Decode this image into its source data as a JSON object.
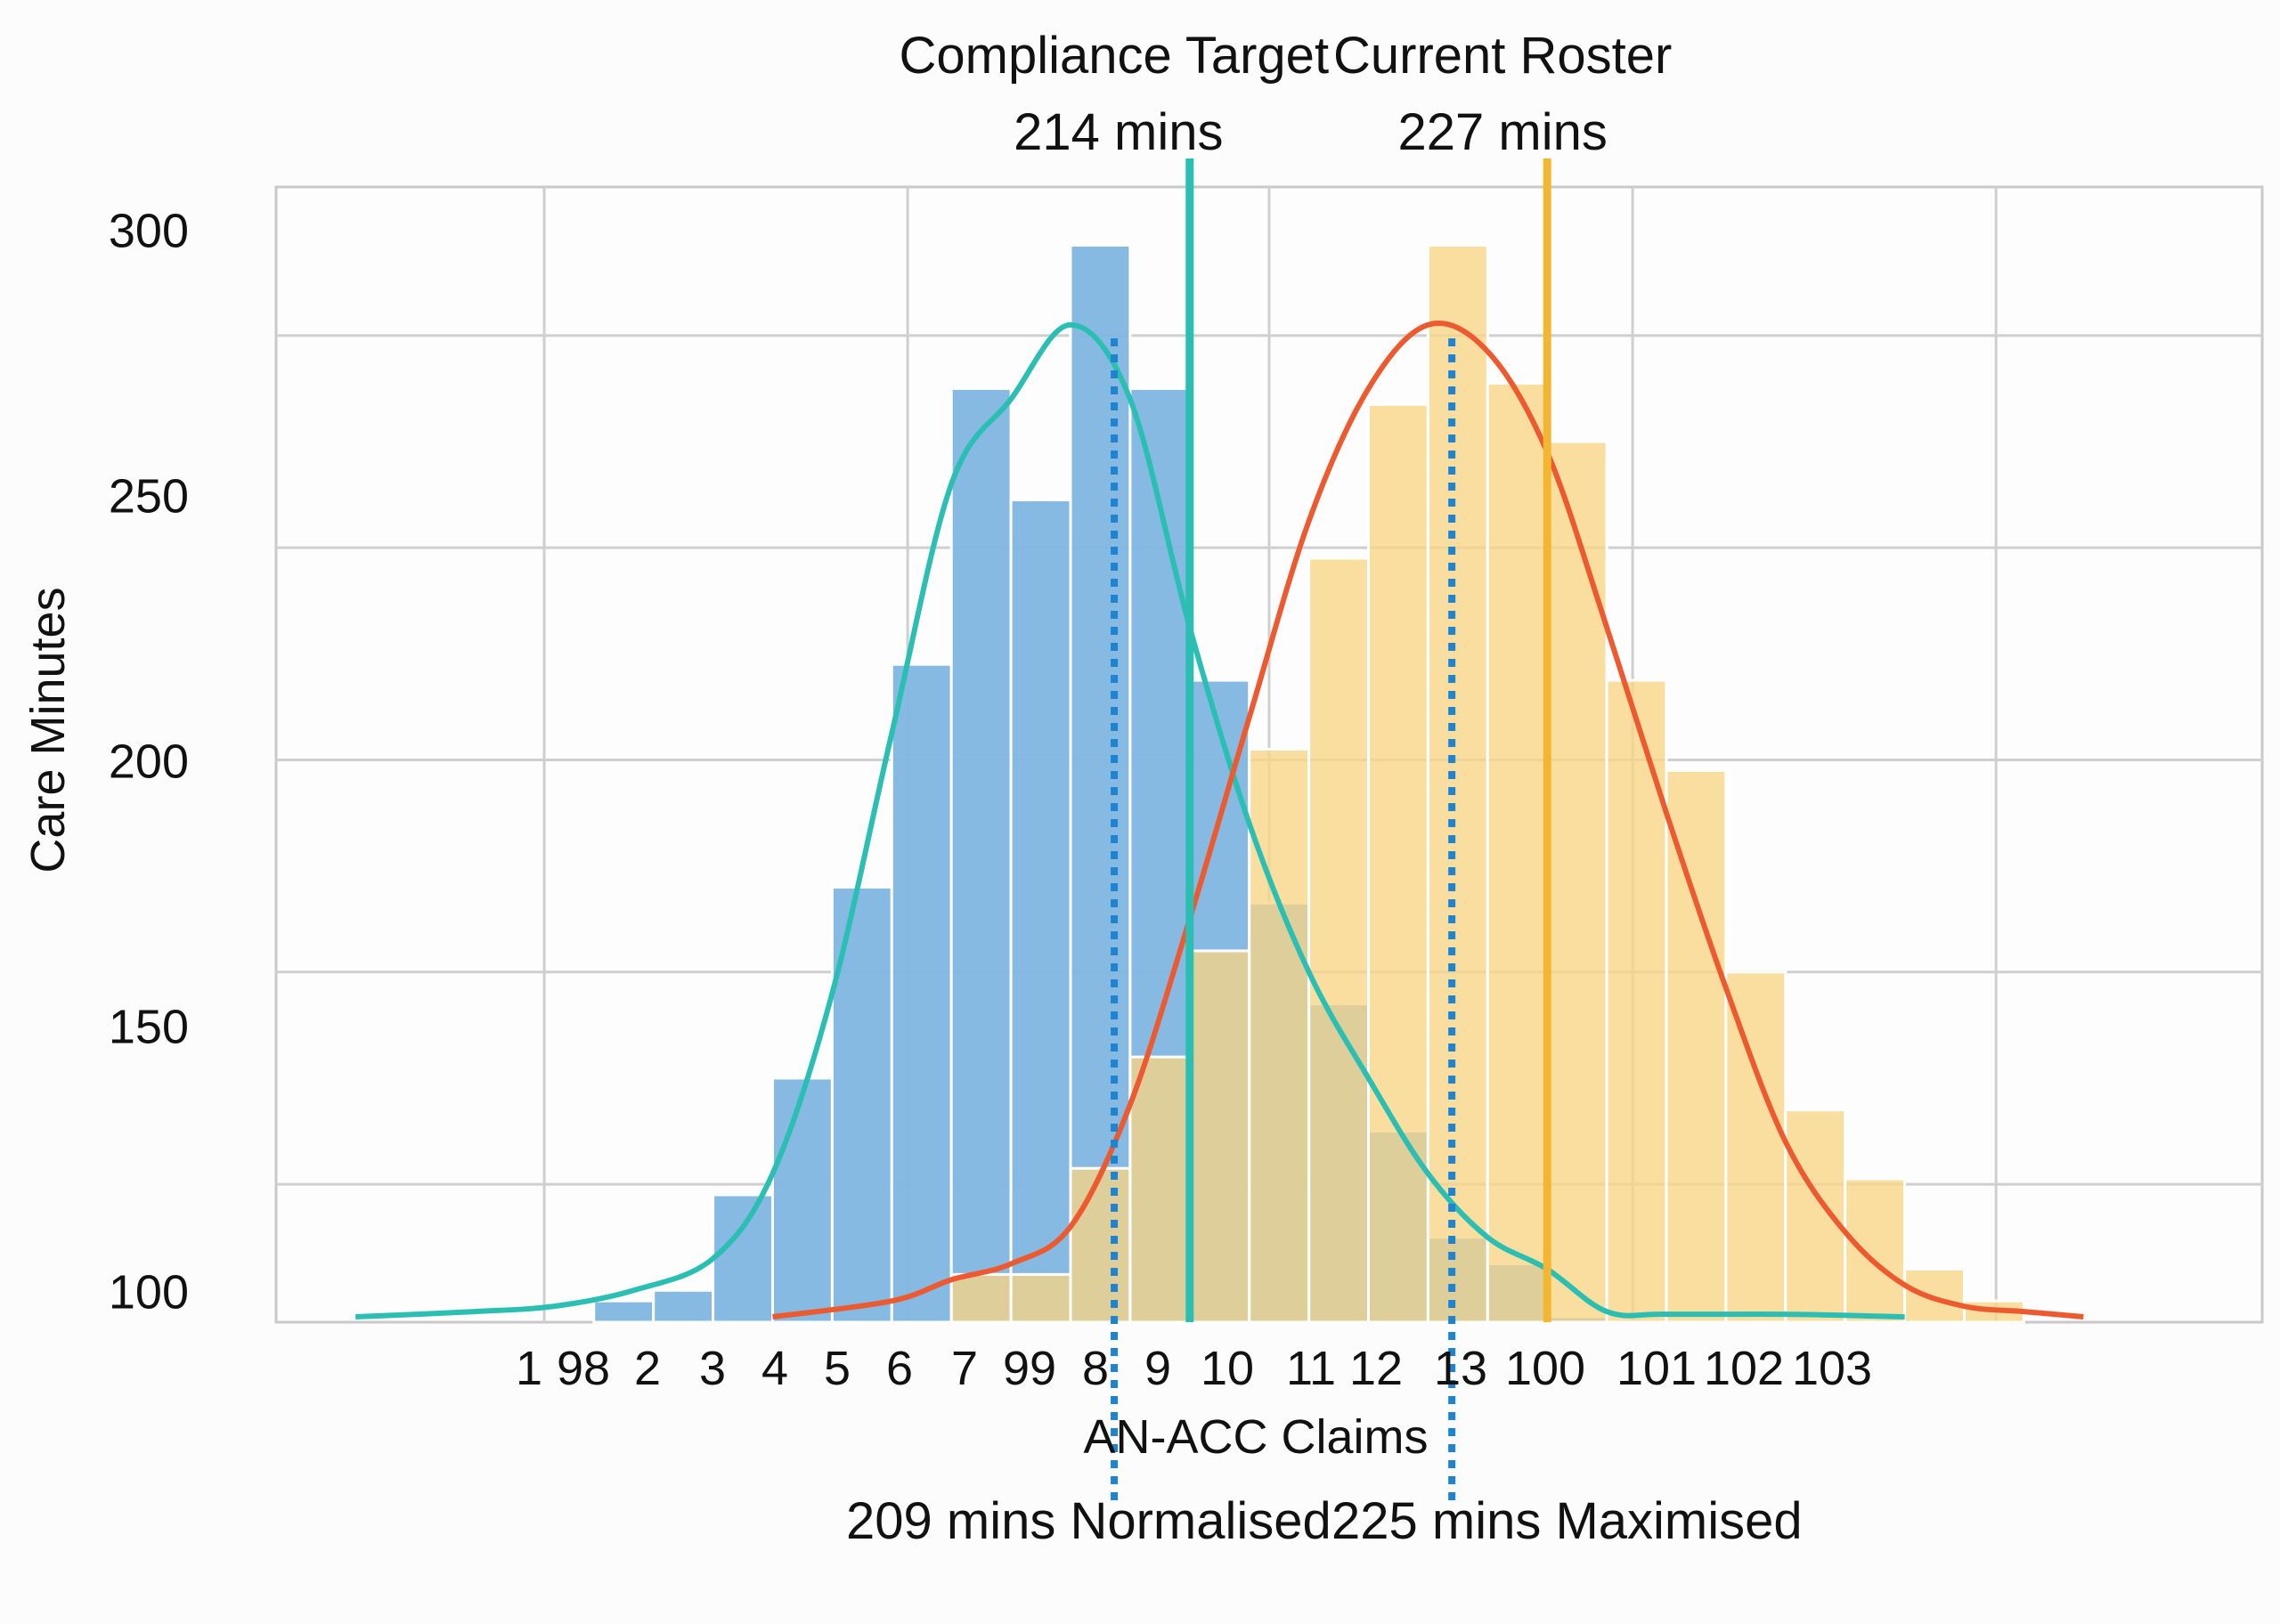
{
  "chart_data": {
    "type": "bar",
    "xlabel": "AN-ACC Claims",
    "ylabel": "Care Minutes",
    "yticks": [
      100,
      150,
      200,
      250,
      300
    ],
    "ylim": [
      94,
      308
    ],
    "grid": true,
    "xticks": [
      "1",
      "98",
      "2",
      "3",
      "4",
      "5",
      "6",
      "7",
      "99",
      "8",
      "9",
      "10",
      "11",
      "12",
      "13",
      "100",
      "101",
      "102",
      "103"
    ],
    "series": [
      {
        "color": "#7fb6e0",
        "bars": [
          {
            "from": 0.16,
            "to": 0.19,
            "value": 98
          },
          {
            "from": 0.19,
            "to": 0.22,
            "value": 100
          },
          {
            "from": 0.22,
            "to": 0.25,
            "value": 118
          },
          {
            "from": 0.25,
            "to": 0.28,
            "value": 140
          },
          {
            "from": 0.28,
            "to": 0.31,
            "value": 176
          },
          {
            "from": 0.31,
            "to": 0.34,
            "value": 218
          },
          {
            "from": 0.34,
            "to": 0.37,
            "value": 270
          },
          {
            "from": 0.37,
            "to": 0.4,
            "value": 249
          },
          {
            "from": 0.4,
            "to": 0.43,
            "value": 297
          },
          {
            "from": 0.43,
            "to": 0.46,
            "value": 270
          },
          {
            "from": 0.46,
            "to": 0.49,
            "value": 215
          },
          {
            "from": 0.49,
            "to": 0.52,
            "value": 173
          },
          {
            "from": 0.52,
            "to": 0.55,
            "value": 154
          },
          {
            "from": 0.55,
            "to": 0.58,
            "value": 130
          },
          {
            "from": 0.58,
            "to": 0.61,
            "value": 110
          },
          {
            "from": 0.61,
            "to": 0.64,
            "value": 105
          },
          {
            "from": 0.64,
            "to": 0.67,
            "value": 95
          }
        ]
      },
      {
        "color": "#f7d585",
        "bars": [
          {
            "from": 0.34,
            "to": 0.37,
            "value": 103
          },
          {
            "from": 0.37,
            "to": 0.4,
            "value": 103
          },
          {
            "from": 0.4,
            "to": 0.43,
            "value": 123
          },
          {
            "from": 0.43,
            "to": 0.46,
            "value": 144
          },
          {
            "from": 0.46,
            "to": 0.49,
            "value": 164
          },
          {
            "from": 0.49,
            "to": 0.52,
            "value": 202
          },
          {
            "from": 0.52,
            "to": 0.55,
            "value": 238
          },
          {
            "from": 0.55,
            "to": 0.58,
            "value": 267
          },
          {
            "from": 0.58,
            "to": 0.61,
            "value": 297
          },
          {
            "from": 0.61,
            "to": 0.64,
            "value": 271
          },
          {
            "from": 0.64,
            "to": 0.67,
            "value": 260
          },
          {
            "from": 0.67,
            "to": 0.7,
            "value": 215
          },
          {
            "from": 0.7,
            "to": 0.73,
            "value": 198
          },
          {
            "from": 0.73,
            "to": 0.76,
            "value": 160
          },
          {
            "from": 0.76,
            "to": 0.79,
            "value": 134
          },
          {
            "from": 0.79,
            "to": 0.82,
            "value": 121
          },
          {
            "from": 0.82,
            "to": 0.85,
            "value": 104
          },
          {
            "from": 0.85,
            "to": 0.88,
            "value": 98
          }
        ]
      }
    ],
    "curves": [
      {
        "color": "#2bbfb3",
        "points": [
          [
            0.04,
            95
          ],
          [
            0.1,
            96
          ],
          [
            0.14,
            97
          ],
          [
            0.18,
            100
          ],
          [
            0.22,
            106
          ],
          [
            0.25,
            122
          ],
          [
            0.28,
            156
          ],
          [
            0.31,
            205
          ],
          [
            0.34,
            252
          ],
          [
            0.37,
            268
          ],
          [
            0.4,
            282
          ],
          [
            0.43,
            268
          ],
          [
            0.46,
            225
          ],
          [
            0.49,
            188
          ],
          [
            0.52,
            160
          ],
          [
            0.55,
            140
          ],
          [
            0.58,
            122
          ],
          [
            0.61,
            110
          ],
          [
            0.64,
            104
          ],
          [
            0.67,
            96
          ],
          [
            0.7,
            95.5
          ],
          [
            0.76,
            95.5
          ],
          [
            0.82,
            95
          ]
        ]
      },
      {
        "color": "#ee5a30",
        "points": [
          [
            0.25,
            95
          ],
          [
            0.31,
            98
          ],
          [
            0.34,
            102
          ],
          [
            0.37,
            105
          ],
          [
            0.4,
            112
          ],
          [
            0.43,
            135
          ],
          [
            0.46,
            170
          ],
          [
            0.49,
            208
          ],
          [
            0.52,
            245
          ],
          [
            0.55,
            270
          ],
          [
            0.58,
            282
          ],
          [
            0.61,
            277
          ],
          [
            0.64,
            258
          ],
          [
            0.67,
            225
          ],
          [
            0.7,
            190
          ],
          [
            0.73,
            157
          ],
          [
            0.76,
            128
          ],
          [
            0.79,
            111
          ],
          [
            0.82,
            101
          ],
          [
            0.85,
            97
          ],
          [
            0.88,
            96
          ],
          [
            0.91,
            95
          ]
        ]
      }
    ],
    "reference_lines": [
      {
        "name": "Compliance Target",
        "value_label": "214 mins",
        "x": 0.46,
        "style": "solid",
        "color": "#2bbfb3",
        "label_position": "top"
      },
      {
        "name": "Current Roster",
        "value_label": "227 mins",
        "x": 0.64,
        "style": "solid",
        "color": "#f2b632",
        "label_position": "top"
      },
      {
        "name": "209 mins Normalised",
        "x": 0.422,
        "style": "dotted",
        "color": "#1f84d0",
        "label_position": "bottom"
      },
      {
        "name": "225 mins Maximised",
        "x": 0.592,
        "style": "dotted",
        "color": "#1f84d0",
        "label_position": "bottom"
      }
    ]
  }
}
